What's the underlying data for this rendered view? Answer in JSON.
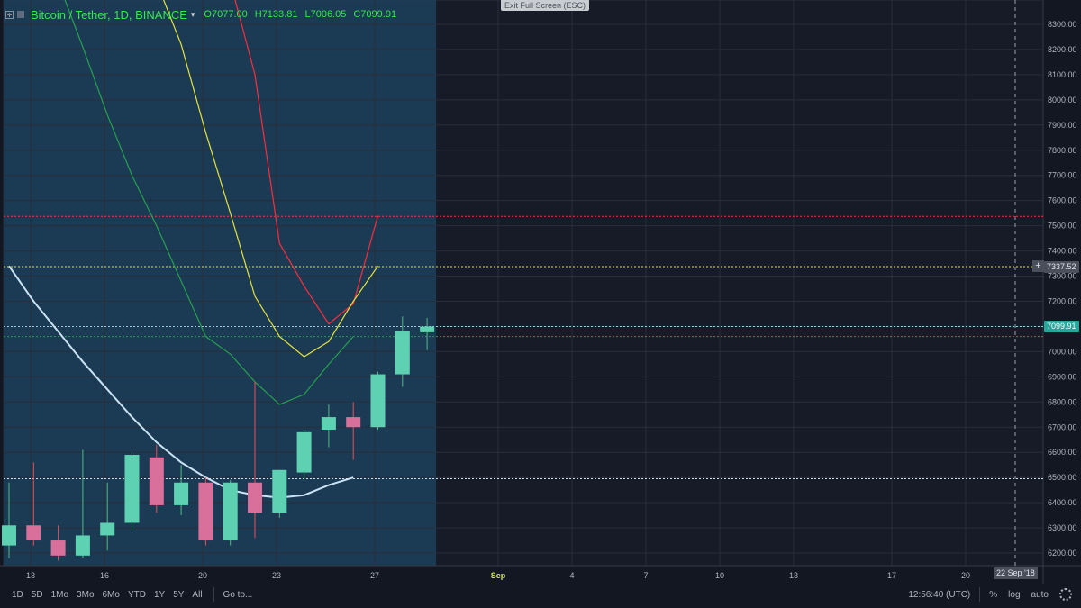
{
  "legend": {
    "symbol": "Bitcoin / Tether, 1D, BINANCE",
    "caret": "▾",
    "open": "O7077.00",
    "high": "H7133.81",
    "low": "L7006.05",
    "close": "C7099.91"
  },
  "exit_fullscreen": "Exit Full Screen (ESC)",
  "price_tags": {
    "current": "7099.91",
    "cursor": "7337.52"
  },
  "date_tag": "22 Sep '18",
  "toolbar": {
    "timeframes": [
      "1D",
      "5D",
      "1Mo",
      "3Mo",
      "6Mo",
      "YTD",
      "1Y",
      "5Y",
      "All"
    ],
    "goto": "Go to...",
    "clock": "12:56:40 (UTC)",
    "percent": "%",
    "log": "log",
    "auto": "auto",
    "settings_icon": "gear-icon"
  },
  "colors": {
    "background": "#131722",
    "up": "#53b987",
    "down": "#eb4d5c",
    "legend_text": "#35e84e"
  },
  "chart_data": {
    "type": "candlestick",
    "symbol": "Bitcoin / Tether",
    "interval": "1D",
    "exchange": "BINANCE",
    "ylim": [
      6150,
      8350
    ],
    "y_ticks": [
      6200,
      6300,
      6400,
      6500,
      6600,
      6700,
      6800,
      6900,
      7000,
      7100,
      7200,
      7300,
      7400,
      7500,
      7600,
      7700,
      7800,
      7900,
      8000,
      8100,
      8200,
      8300
    ],
    "y_tick_labels": [
      "6200.00",
      "6300.00",
      "6400.00",
      "6500.00",
      "6600.00",
      "6700.00",
      "6800.00",
      "6900.00",
      "7000.00",
      "7100.00",
      "7200.00",
      "7300.00",
      "7400.00",
      "7500.00",
      "7600.00",
      "7700.00",
      "7800.00",
      "7900.00",
      "8000.00",
      "8100.00",
      "8200.00",
      "8300.00"
    ],
    "x_tick_labels": [
      "13",
      "16",
      "20",
      "23",
      "27",
      "Sep",
      "4",
      "7",
      "10",
      "13",
      "17",
      "20"
    ],
    "candles": [
      {
        "o": 6230,
        "h": 6480,
        "l": 6180,
        "c": 6310
      },
      {
        "o": 6310,
        "h": 6560,
        "l": 6230,
        "c": 6250
      },
      {
        "o": 6250,
        "h": 6310,
        "l": 6170,
        "c": 6190
      },
      {
        "o": 6190,
        "h": 6610,
        "l": 6180,
        "c": 6270
      },
      {
        "o": 6270,
        "h": 6480,
        "l": 6210,
        "c": 6320
      },
      {
        "o": 6320,
        "h": 6600,
        "l": 6290,
        "c": 6590
      },
      {
        "o": 6580,
        "h": 6630,
        "l": 6360,
        "c": 6390
      },
      {
        "o": 6390,
        "h": 6550,
        "l": 6350,
        "c": 6480
      },
      {
        "o": 6480,
        "h": 6500,
        "l": 6230,
        "c": 6250
      },
      {
        "o": 6250,
        "h": 6490,
        "l": 6230,
        "c": 6480
      },
      {
        "o": 6480,
        "h": 6880,
        "l": 6260,
        "c": 6360
      },
      {
        "o": 6360,
        "h": 6530,
        "l": 6340,
        "c": 6530
      },
      {
        "o": 6520,
        "h": 6690,
        "l": 6490,
        "c": 6680
      },
      {
        "o": 6690,
        "h": 6790,
        "l": 6620,
        "c": 6740
      },
      {
        "o": 6740,
        "h": 6800,
        "l": 6570,
        "c": 6700
      },
      {
        "o": 6700,
        "h": 6920,
        "l": 6690,
        "c": 6910
      },
      {
        "o": 6910,
        "h": 7140,
        "l": 6860,
        "c": 7080
      },
      {
        "o": 7077,
        "h": 7134,
        "l": 7006,
        "c": 7100
      }
    ],
    "overlay_lines": [
      {
        "color": "#ff2c3c",
        "values": [
          null,
          null,
          null,
          null,
          null,
          null,
          null,
          null,
          9100,
          8700,
          8100,
          7430,
          7260,
          7110,
          7190,
          7540,
          null,
          null
        ]
      },
      {
        "color": "#e6e43c",
        "values": [
          null,
          null,
          null,
          null,
          null,
          null,
          8620,
          8220,
          7870,
          7550,
          7220,
          7060,
          6980,
          7040,
          7200,
          7340,
          null,
          null
        ]
      },
      {
        "color": "#26a050",
        "values": [
          null,
          null,
          8580,
          8210,
          7940,
          7700,
          7500,
          7280,
          7060,
          6990,
          6880,
          6790,
          6830,
          6950,
          7060,
          null,
          null,
          null
        ]
      },
      {
        "color": "#c9e3f5",
        "values": [
          7340,
          7200,
          7080,
          6960,
          6850,
          6740,
          6640,
          6560,
          6500,
          6450,
          6430,
          6420,
          6430,
          6470,
          6500,
          null,
          null,
          null
        ]
      }
    ],
    "horizontal_levels": [
      {
        "value": 7537,
        "color": "#ff2c3c"
      },
      {
        "value": 7337.52,
        "color": "#e6e43c"
      },
      {
        "value": 7099.91,
        "color": "#8fd3e6"
      },
      {
        "value": 7060,
        "color": "#26a050"
      },
      {
        "value": 6495,
        "color": "#c9e3f5"
      }
    ],
    "grid": true
  }
}
